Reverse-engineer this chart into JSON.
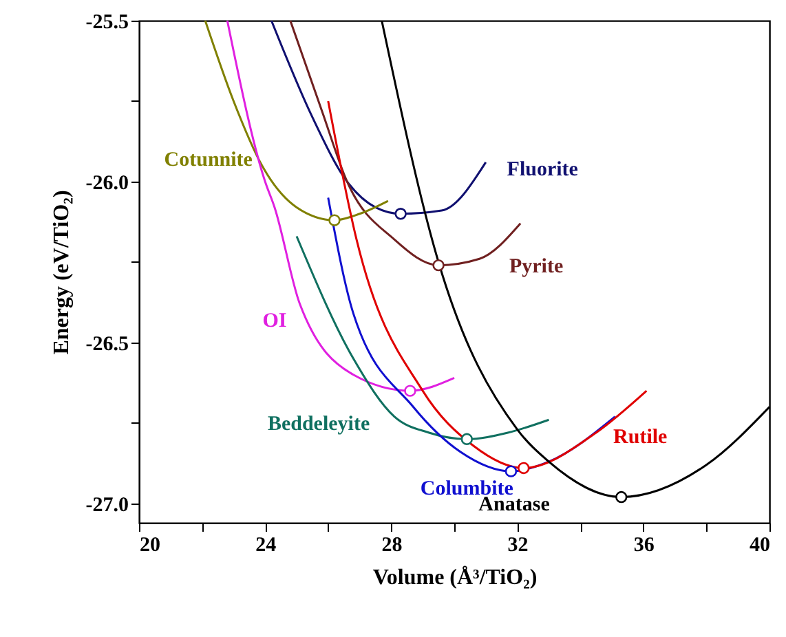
{
  "chart_data": {
    "type": "line",
    "xlabel": "Volume (Å³/TiO₂)",
    "ylabel": "Energy (eV/TiO₂)",
    "xlim": [
      20,
      40
    ],
    "ylim": [
      -27.06,
      -25.5
    ],
    "xticks": [
      20,
      {
        "value": 22,
        "label": null
      },
      24,
      {
        "value": 26,
        "label": null
      },
      28,
      {
        "value": 30,
        "label": null
      },
      32,
      {
        "value": 34,
        "label": null
      },
      36,
      {
        "value": 38,
        "label": null
      },
      40
    ],
    "yticks": [
      {
        "value": -25.5,
        "label": "-25.5"
      },
      {
        "value": -25.75,
        "label": null
      },
      {
        "value": -26,
        "label": "-26.0"
      },
      {
        "value": -26.25,
        "label": null
      },
      {
        "value": -26.5,
        "label": "-26.5"
      },
      {
        "value": -26.75,
        "label": null
      },
      {
        "value": -27,
        "label": "-27.0"
      }
    ],
    "grid": false,
    "legend": false,
    "line_style": "solid",
    "series": [
      {
        "name": "Fluorite",
        "color": "#101070",
        "x": [
          24.2,
          25.5,
          26.6,
          27.5,
          28.3,
          29.6,
          31.0
        ],
        "values": [
          -25.5,
          -25.8,
          -26.0,
          -26.08,
          -26.1,
          -26.09,
          -25.94
        ]
      },
      {
        "name": "Pyrite",
        "color": "#702020",
        "x": [
          24.8,
          25.8,
          26.6,
          28.1,
          29.5,
          30.8,
          32.1
        ],
        "values": [
          -25.5,
          -25.78,
          -26.0,
          -26.18,
          -26.26,
          -26.24,
          -26.13
        ]
      },
      {
        "name": "Cotunnite",
        "color": "#808000",
        "x": [
          22.1,
          23.0,
          23.9,
          25.0,
          26.2,
          27.0,
          27.9
        ],
        "values": [
          -25.5,
          -25.75,
          -25.95,
          -26.08,
          -26.12,
          -26.1,
          -26.06
        ]
      },
      {
        "name": "OI",
        "color": "#e020e0",
        "x": [
          22.8,
          24.0,
          24.3,
          25.1,
          26.8,
          28.6,
          30.0
        ],
        "values": [
          -25.5,
          -26.0,
          -26.08,
          -26.38,
          -26.6,
          -26.65,
          -26.61
        ]
      },
      {
        "name": "Beddeleyite",
        "color": "#107060",
        "x": [
          25.0,
          26.8,
          28.1,
          29.2,
          30.4,
          31.7,
          33.0
        ],
        "values": [
          -26.17,
          -26.55,
          -26.73,
          -26.78,
          -26.8,
          -26.78,
          -26.74
        ]
      },
      {
        "name": "Columbite",
        "color": "#1010d0",
        "x": [
          26.0,
          26.8,
          28.7,
          30.2,
          31.8,
          33.0,
          35.1
        ],
        "values": [
          -26.05,
          -26.41,
          -26.7,
          -26.84,
          -26.9,
          -26.87,
          -26.73
        ]
      },
      {
        "name": "Rutile",
        "color": "#e00000",
        "x": [
          26.0,
          26.9,
          29.0,
          30.6,
          32.2,
          34.5,
          36.1
        ],
        "values": [
          -25.75,
          -26.18,
          -26.65,
          -26.82,
          -26.89,
          -26.78,
          -26.65
        ]
      },
      {
        "name": "Anatase",
        "color": "#000000",
        "x": [
          27.7,
          29.5,
          32.0,
          33.0,
          35.3,
          38.0,
          40.0
        ],
        "values": [
          -25.5,
          -26.25,
          -26.77,
          -26.87,
          -26.98,
          -26.88,
          -26.7
        ]
      },
      {
        "type": "scatter",
        "marker": "circle",
        "x": [
          28.3,
          29.5,
          26.2,
          28.6,
          30.4,
          31.8,
          32.2,
          35.3
        ],
        "values": [
          -26.1,
          -26.26,
          -26.12,
          -26.65,
          -26.8,
          -26.9,
          -26.89,
          -26.98
        ],
        "colors": [
          "#101070",
          "#702020",
          "#808000",
          "#e020e0",
          "#107060",
          "#1010d0",
          "#e00000",
          "#000000"
        ]
      }
    ]
  }
}
